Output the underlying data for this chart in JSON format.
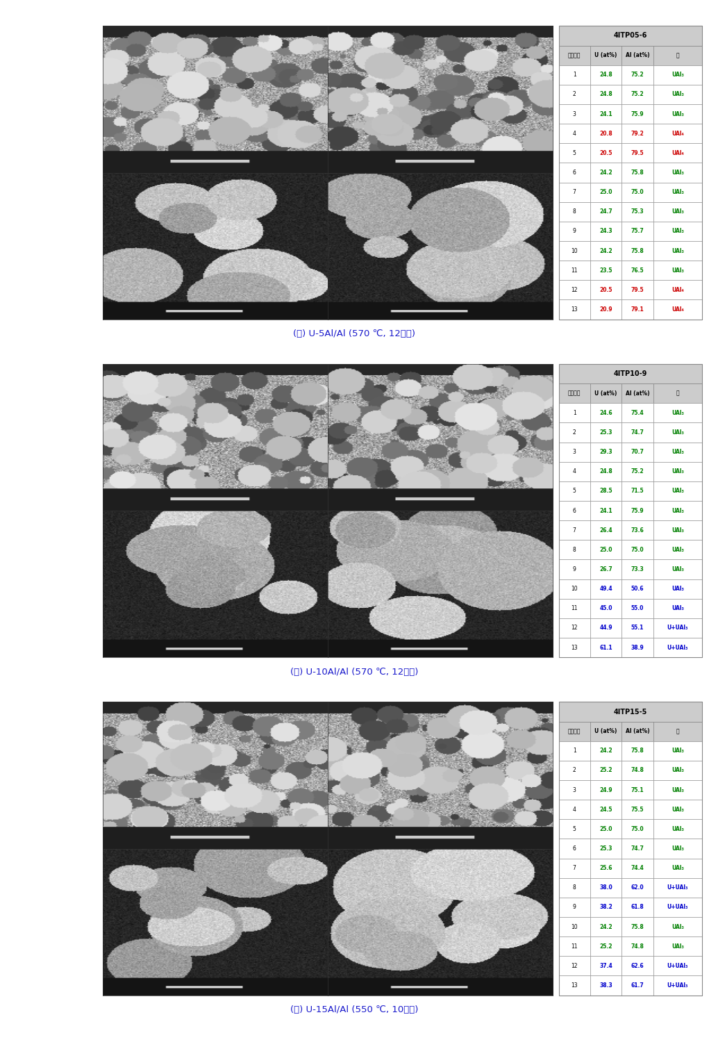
{
  "background_color": "#ffffff",
  "panel_labels": [
    "(가) U-5Al/Al (570 ℃, 12시간)",
    "(나) U-10Al/Al (570 ℃, 12시간)",
    "(다) U-15Al/Al (550 ℃, 10시간)"
  ],
  "tables": [
    {
      "title": "4ITP05-6",
      "headers": [
        "스펙트럼",
        "U (at%)",
        "Al (at%)",
        "상"
      ],
      "rows": [
        [
          "1",
          "24.8",
          "75.2",
          "UAl₃"
        ],
        [
          "2",
          "24.8",
          "75.2",
          "UAl₃"
        ],
        [
          "3",
          "24.1",
          "75.9",
          "UAl₃"
        ],
        [
          "4",
          "20.8",
          "79.2",
          "UAl₄"
        ],
        [
          "5",
          "20.5",
          "79.5",
          "UAl₄"
        ],
        [
          "6",
          "24.2",
          "75.8",
          "UAl₃"
        ],
        [
          "7",
          "25.0",
          "75.0",
          "UAl₃"
        ],
        [
          "8",
          "24.7",
          "75.3",
          "UAl₃"
        ],
        [
          "9",
          "24.3",
          "75.7",
          "UAl₃"
        ],
        [
          "10",
          "24.2",
          "75.8",
          "UAl₃"
        ],
        [
          "11",
          "23.5",
          "76.5",
          "UAl₃"
        ],
        [
          "12",
          "20.5",
          "79.5",
          "UAl₄"
        ],
        [
          "13",
          "20.9",
          "79.1",
          "UAl₄"
        ]
      ],
      "row_colors": [
        [
          "#000000",
          "#008000",
          "#008000",
          "#008000"
        ],
        [
          "#000000",
          "#008000",
          "#008000",
          "#008000"
        ],
        [
          "#000000",
          "#008000",
          "#008000",
          "#008000"
        ],
        [
          "#000000",
          "#cc0000",
          "#cc0000",
          "#cc0000"
        ],
        [
          "#000000",
          "#cc0000",
          "#cc0000",
          "#cc0000"
        ],
        [
          "#000000",
          "#008000",
          "#008000",
          "#008000"
        ],
        [
          "#000000",
          "#008000",
          "#008000",
          "#008000"
        ],
        [
          "#000000",
          "#008000",
          "#008000",
          "#008000"
        ],
        [
          "#000000",
          "#008000",
          "#008000",
          "#008000"
        ],
        [
          "#000000",
          "#008000",
          "#008000",
          "#008000"
        ],
        [
          "#000000",
          "#008000",
          "#008000",
          "#008000"
        ],
        [
          "#000000",
          "#cc0000",
          "#cc0000",
          "#cc0000"
        ],
        [
          "#000000",
          "#cc0000",
          "#cc0000",
          "#cc0000"
        ]
      ]
    },
    {
      "title": "4ITP10-9",
      "headers": [
        "스펙트럼",
        "U (at%)",
        "Al (at%)",
        "상"
      ],
      "rows": [
        [
          "1",
          "24.6",
          "75.4",
          "UAl₃"
        ],
        [
          "2",
          "25.3",
          "74.7",
          "UAl₃"
        ],
        [
          "3",
          "29.3",
          "70.7",
          "UAl₃"
        ],
        [
          "4",
          "24.8",
          "75.2",
          "UAl₃"
        ],
        [
          "5",
          "28.5",
          "71.5",
          "UAl₃"
        ],
        [
          "6",
          "24.1",
          "75.9",
          "UAl₃"
        ],
        [
          "7",
          "26.4",
          "73.6",
          "UAl₃"
        ],
        [
          "8",
          "25.0",
          "75.0",
          "UAl₃"
        ],
        [
          "9",
          "26.7",
          "73.3",
          "UAl₃"
        ],
        [
          "10",
          "49.4",
          "50.6",
          "UAl₃"
        ],
        [
          "11",
          "45.0",
          "55.0",
          "UAl₃"
        ],
        [
          "12",
          "44.9",
          "55.1",
          "U+UAl₃"
        ],
        [
          "13",
          "61.1",
          "38.9",
          "U+UAl₃"
        ]
      ],
      "row_colors": [
        [
          "#000000",
          "#008000",
          "#008000",
          "#008000"
        ],
        [
          "#000000",
          "#008000",
          "#008000",
          "#008000"
        ],
        [
          "#000000",
          "#008000",
          "#008000",
          "#008000"
        ],
        [
          "#000000",
          "#008000",
          "#008000",
          "#008000"
        ],
        [
          "#000000",
          "#008000",
          "#008000",
          "#008000"
        ],
        [
          "#000000",
          "#008000",
          "#008000",
          "#008000"
        ],
        [
          "#000000",
          "#008000",
          "#008000",
          "#008000"
        ],
        [
          "#000000",
          "#008000",
          "#008000",
          "#008000"
        ],
        [
          "#000000",
          "#008000",
          "#008000",
          "#008000"
        ],
        [
          "#000000",
          "#0000cc",
          "#0000cc",
          "#0000cc"
        ],
        [
          "#000000",
          "#0000cc",
          "#0000cc",
          "#0000cc"
        ],
        [
          "#000000",
          "#0000cc",
          "#0000cc",
          "#0000cc"
        ],
        [
          "#000000",
          "#0000cc",
          "#0000cc",
          "#0000cc"
        ]
      ]
    },
    {
      "title": "4ITP15-5",
      "headers": [
        "스펙트럼",
        "U (at%)",
        "Al (at%)",
        "상"
      ],
      "rows": [
        [
          "1",
          "24.2",
          "75.8",
          "UAl₃"
        ],
        [
          "2",
          "25.2",
          "74.8",
          "UAl₃"
        ],
        [
          "3",
          "24.9",
          "75.1",
          "UAl₃"
        ],
        [
          "4",
          "24.5",
          "75.5",
          "UAl₃"
        ],
        [
          "5",
          "25.0",
          "75.0",
          "UAl₃"
        ],
        [
          "6",
          "25.3",
          "74.7",
          "UAl₃"
        ],
        [
          "7",
          "25.6",
          "74.4",
          "UAl₃"
        ],
        [
          "8",
          "38.0",
          "62.0",
          "U+UAl₃"
        ],
        [
          "9",
          "38.2",
          "61.8",
          "U+UAl₃"
        ],
        [
          "10",
          "24.2",
          "75.8",
          "UAl₃"
        ],
        [
          "11",
          "25.2",
          "74.8",
          "UAl₃"
        ],
        [
          "12",
          "37.4",
          "62.6",
          "U+UAl₃"
        ],
        [
          "13",
          "38.3",
          "61.7",
          "U+UAl₃"
        ]
      ],
      "row_colors": [
        [
          "#000000",
          "#008000",
          "#008000",
          "#008000"
        ],
        [
          "#000000",
          "#008000",
          "#008000",
          "#008000"
        ],
        [
          "#000000",
          "#008000",
          "#008000",
          "#008000"
        ],
        [
          "#000000",
          "#008000",
          "#008000",
          "#008000"
        ],
        [
          "#000000",
          "#008000",
          "#008000",
          "#008000"
        ],
        [
          "#000000",
          "#008000",
          "#008000",
          "#008000"
        ],
        [
          "#000000",
          "#008000",
          "#008000",
          "#008000"
        ],
        [
          "#000000",
          "#0000cc",
          "#0000cc",
          "#0000cc"
        ],
        [
          "#000000",
          "#0000cc",
          "#0000cc",
          "#0000cc"
        ],
        [
          "#000000",
          "#008000",
          "#008000",
          "#008000"
        ],
        [
          "#000000",
          "#008000",
          "#008000",
          "#008000"
        ],
        [
          "#000000",
          "#0000cc",
          "#0000cc",
          "#0000cc"
        ],
        [
          "#000000",
          "#0000cc",
          "#0000cc",
          "#0000cc"
        ]
      ]
    }
  ],
  "table_header_bg": "#cccccc",
  "table_border_color": "#888888",
  "font_size_title": 7.0,
  "font_size_header": 5.5,
  "font_size_cell": 5.5,
  "caption_fontsize": 9.5
}
